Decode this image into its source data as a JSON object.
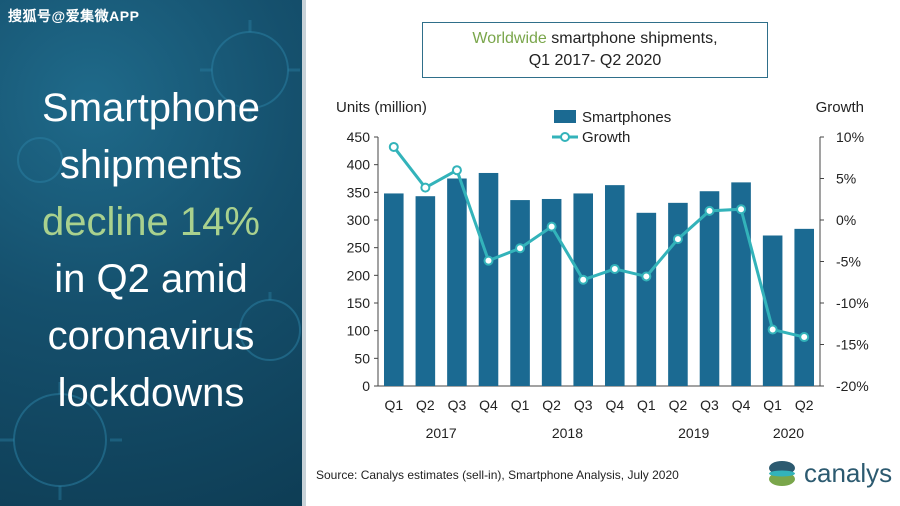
{
  "watermark": "搜狐号@爱集微APP",
  "headline": {
    "line1": "Smartphone",
    "line2": "shipments",
    "line3": "decline 14%",
    "line4": "in Q2 amid",
    "line5": "coronavirus",
    "line6": "lockdowns"
  },
  "source": "Source: Canalys estimates (sell-in), Smartphone Analysis, July 2020",
  "logo_text": "canalys",
  "colors": {
    "bar": "#1b6a92",
    "line": "#33b3ba",
    "highlight": "#a9d18e",
    "title_accent": "#7aa64b"
  },
  "chart_data": {
    "type": "bar",
    "title_prefix": "Worldwide",
    "title_rest": "smartphone shipments,",
    "title_line2": "Q1 2017- Q2 2020",
    "ylabel": "Units (million)",
    "y2label": "Growth",
    "ylim": [
      0,
      450
    ],
    "y2lim": [
      -20,
      10
    ],
    "y_ticks": [
      0,
      50,
      100,
      150,
      200,
      250,
      300,
      350,
      400,
      450
    ],
    "y2_ticks": [
      "10%",
      "5%",
      "0%",
      "-5%",
      "-10%",
      "-15%",
      "-20%"
    ],
    "categories": [
      "Q1",
      "Q2",
      "Q3",
      "Q4",
      "Q1",
      "Q2",
      "Q3",
      "Q4",
      "Q1",
      "Q2",
      "Q3",
      "Q4",
      "Q1",
      "Q2"
    ],
    "years": [
      "2017",
      "2018",
      "2019",
      "2020"
    ],
    "legend_position": "top-center",
    "series": [
      {
        "name": "Smartphones",
        "kind": "bar",
        "values": [
          348,
          343,
          375,
          385,
          336,
          338,
          348,
          363,
          313,
          331,
          352,
          368,
          272,
          284
        ]
      },
      {
        "name": "Growth",
        "kind": "line",
        "values": [
          8.8,
          3.9,
          6.0,
          -4.9,
          -3.4,
          -0.8,
          -7.2,
          -5.9,
          -6.8,
          -2.3,
          1.1,
          1.3,
          -13.2,
          -14.1
        ]
      }
    ]
  }
}
